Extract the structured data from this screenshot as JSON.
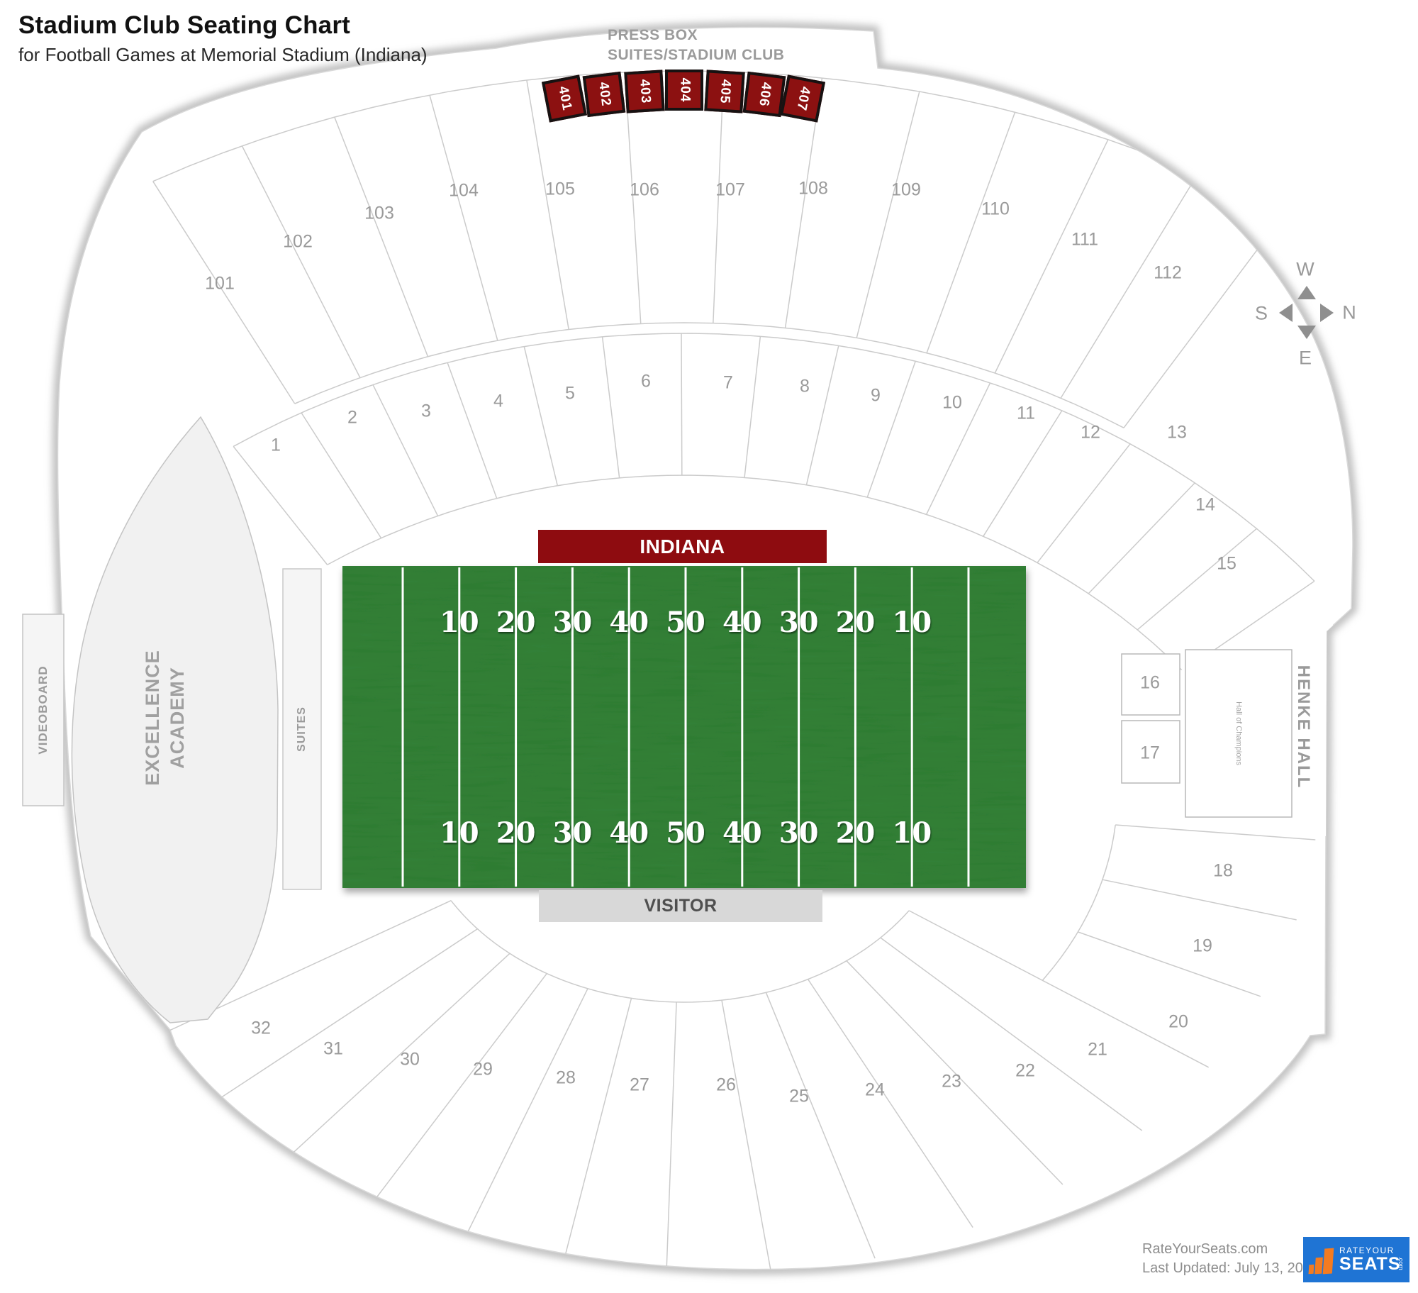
{
  "header": {
    "title": "Stadium Club Seating Chart",
    "subtitle": "for Football Games at Memorial Stadium (Indiana)"
  },
  "press_box": {
    "line1": "PRESS BOX",
    "line2": "SUITES/STADIUM CLUB"
  },
  "suites_row": [
    "401",
    "402",
    "403",
    "404",
    "405",
    "406",
    "407"
  ],
  "field": {
    "home": "INDIANA",
    "visitor": "VISITOR",
    "yards": [
      "10",
      "20",
      "30",
      "40",
      "50",
      "40",
      "30",
      "20",
      "10"
    ]
  },
  "sections": {
    "upper": [
      "101",
      "102",
      "103",
      "104",
      "105",
      "106",
      "107",
      "108",
      "109",
      "110",
      "111",
      "112"
    ],
    "mid": [
      "1",
      "2",
      "3",
      "4",
      "5",
      "6",
      "7",
      "8",
      "9",
      "10",
      "11",
      "12",
      "13",
      "14",
      "15"
    ],
    "boxes": [
      "16",
      "17"
    ],
    "lower": [
      "18",
      "19",
      "20",
      "21",
      "22",
      "23",
      "24",
      "25",
      "26",
      "27",
      "28",
      "29",
      "30",
      "31",
      "32"
    ]
  },
  "areas": {
    "videoboard": "VIDEOBOARD",
    "excellence_line1": "EXCELLENCE",
    "excellence_line2": "ACADEMY",
    "suites": "SUITES",
    "henke_hall": "HENKE HALL",
    "hall_of_champions": "Hall of Champions"
  },
  "compass": {
    "w": "W",
    "n": "N",
    "e": "E",
    "s": "S"
  },
  "footer": {
    "site": "RateYourSeats.com",
    "updated": "Last Updated: July 13, 2022"
  },
  "logo": {
    "top": "RATEYOUR",
    "bottom": "SEATS",
    "suffix": ".com"
  },
  "colors": {
    "field_green": "#2e7b31",
    "banner_red": "#8e0c10",
    "suite_red": "#8c1111",
    "logo_blue": "#1f74d4",
    "logo_orange": "#f47b20"
  }
}
